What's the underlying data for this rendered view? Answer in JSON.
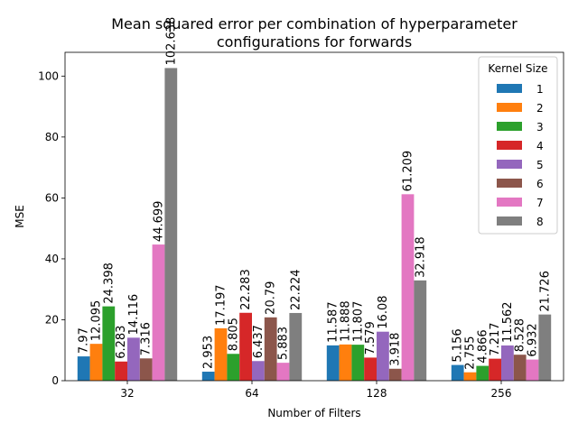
{
  "chart_data": {
    "type": "bar",
    "title_line1": "Mean squared error per combination of hyperparameter",
    "title_line2": "configurations for forwards",
    "xlabel": "Number of Filters",
    "ylabel": "MSE",
    "categories": [
      "32",
      "64",
      "128",
      "256"
    ],
    "ylim": [
      0,
      107.8
    ],
    "yticks": [
      0,
      20,
      40,
      60,
      80,
      100
    ],
    "grid": false,
    "legend": {
      "title": "Kernel Size",
      "placement": "top-right"
    },
    "series": [
      {
        "name": "1",
        "color": "#1f77b4",
        "values": [
          7.97,
          2.953,
          11.587,
          5.156
        ],
        "labels": [
          "7.97",
          "2.953",
          "11.587",
          "5.156"
        ]
      },
      {
        "name": "2",
        "color": "#ff7f0e",
        "values": [
          12.095,
          17.197,
          11.888,
          2.755
        ],
        "labels": [
          "12.095",
          "17.197",
          "11.888",
          "2.755"
        ]
      },
      {
        "name": "3",
        "color": "#2ca02c",
        "values": [
          24.398,
          8.805,
          11.807,
          4.866
        ],
        "labels": [
          "24.398",
          "8.805",
          "11.807",
          "4.866"
        ]
      },
      {
        "name": "4",
        "color": "#d62728",
        "values": [
          6.283,
          22.283,
          7.579,
          7.217
        ],
        "labels": [
          "6.283",
          "22.283",
          "7.579",
          "7.217"
        ]
      },
      {
        "name": "5",
        "color": "#9467bd",
        "values": [
          14.116,
          6.437,
          16.08,
          11.562
        ],
        "labels": [
          "14.116",
          "6.437",
          "16.08",
          "11.562"
        ]
      },
      {
        "name": "6",
        "color": "#8c564b",
        "values": [
          7.316,
          20.79,
          3.918,
          8.528
        ],
        "labels": [
          "7.316",
          "20.79",
          "3.918",
          "8.528"
        ]
      },
      {
        "name": "7",
        "color": "#e377c2",
        "values": [
          44.699,
          5.883,
          61.209,
          6.932
        ],
        "labels": [
          "44.699",
          "5.883",
          "61.209",
          "6.932"
        ]
      },
      {
        "name": "8",
        "color": "#7f7f7f",
        "values": [
          102.638,
          22.224,
          32.918,
          21.726
        ],
        "labels": [
          "102.638",
          "22.224",
          "32.918",
          "21.726"
        ]
      }
    ]
  }
}
